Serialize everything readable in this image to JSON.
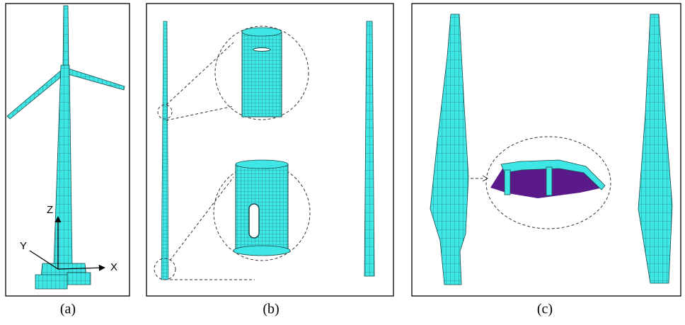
{
  "panels": [
    {
      "label": "(a)",
      "axes": [
        "Z",
        "Y",
        "X"
      ]
    },
    {
      "label": "(b)"
    },
    {
      "label": "(c)"
    }
  ]
}
